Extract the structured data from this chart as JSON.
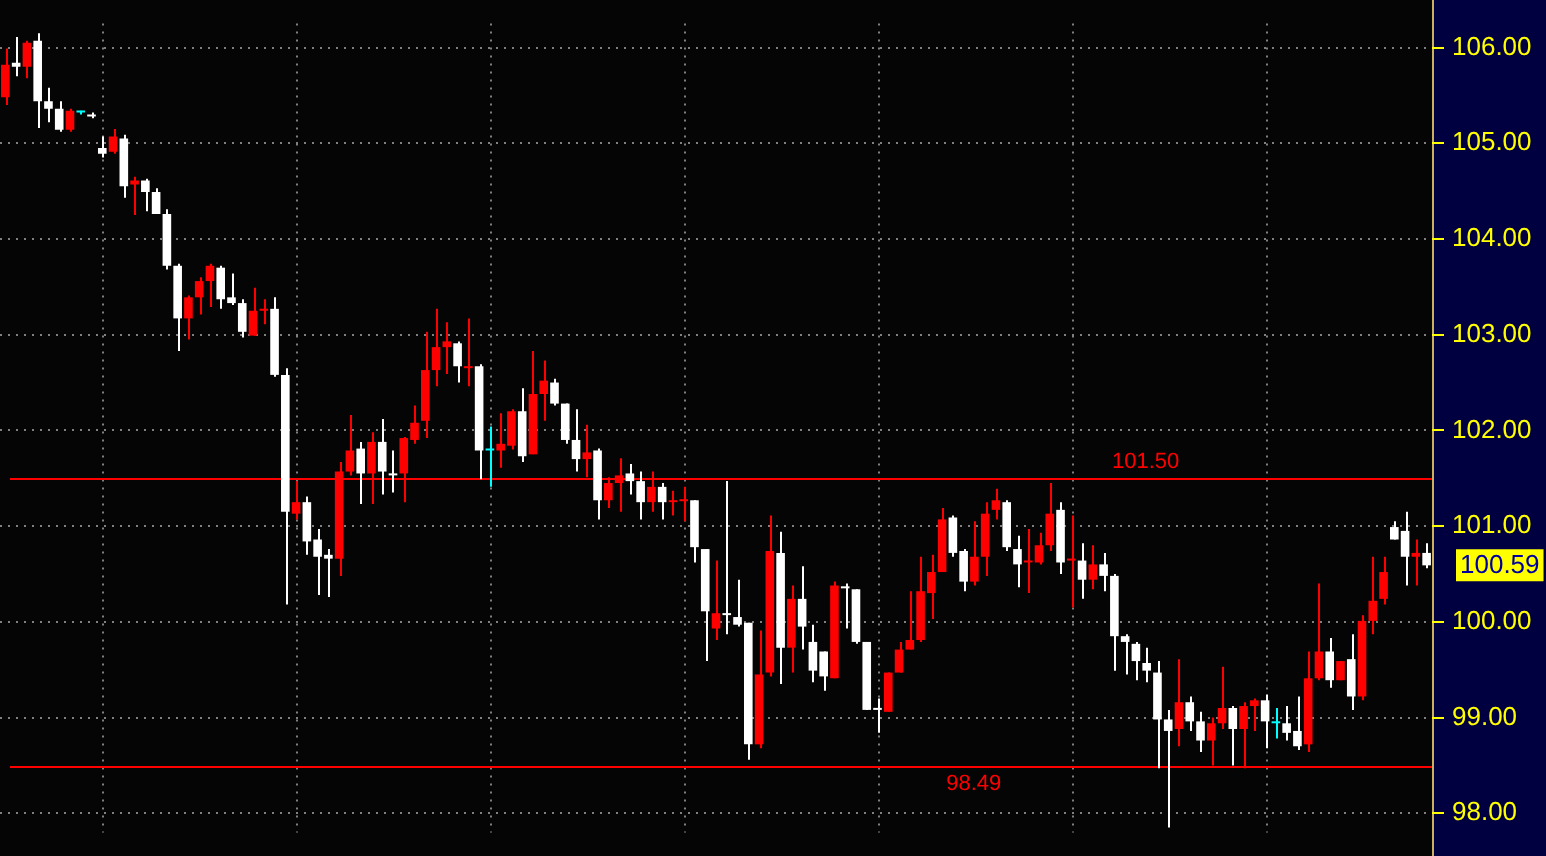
{
  "chart_data": {
    "type": "candlestick",
    "categories": [
      null,
      null,
      null,
      null,
      null,
      null,
      null,
      null,
      null,
      null,
      null,
      null,
      null,
      null,
      null,
      null,
      null,
      null,
      null,
      null,
      null,
      null,
      null,
      null,
      null,
      null,
      null,
      null,
      null,
      null,
      null,
      null,
      null,
      null,
      null,
      null,
      null,
      null,
      null,
      null,
      null,
      null,
      null,
      null,
      null,
      null,
      null,
      null,
      null,
      null,
      null,
      null,
      null,
      null,
      null,
      null,
      null,
      null,
      null,
      null,
      null,
      null,
      null,
      null,
      null,
      null,
      null,
      null,
      null,
      null,
      null,
      null,
      null,
      null,
      null,
      null,
      null,
      null,
      null,
      null,
      null,
      null,
      null,
      null,
      null,
      null,
      null,
      null,
      null,
      null,
      null,
      null,
      null,
      null,
      null,
      null,
      null,
      null,
      null,
      null,
      null,
      null,
      null,
      null,
      null,
      null,
      null,
      null,
      null,
      null,
      null,
      null,
      null,
      null,
      null,
      null,
      null,
      null,
      null,
      null,
      null,
      null,
      null,
      null,
      null,
      null,
      null,
      null,
      null,
      null,
      null,
      null,
      null
    ],
    "ohlc": [
      [
        105.48,
        105.99,
        105.4,
        105.82
      ],
      [
        105.84,
        106.11,
        105.7,
        105.8
      ],
      [
        105.8,
        106.07,
        105.68,
        106.05
      ],
      [
        106.07,
        106.15,
        105.16,
        105.44
      ],
      [
        105.44,
        105.58,
        105.22,
        105.36
      ],
      [
        105.36,
        105.44,
        105.12,
        105.14
      ],
      [
        105.14,
        105.36,
        105.12,
        105.34
      ],
      [
        105.32,
        105.34,
        105.3,
        105.32
      ],
      [
        105.3,
        105.32,
        105.26,
        105.28
      ],
      [
        104.95,
        105.07,
        104.85,
        104.89
      ],
      [
        104.91,
        105.15,
        104.89,
        105.07
      ],
      [
        105.05,
        105.09,
        104.43,
        104.55
      ],
      [
        104.57,
        104.65,
        104.25,
        104.61
      ],
      [
        104.61,
        104.63,
        104.29,
        104.49
      ],
      [
        104.49,
        104.53,
        104.26,
        104.26
      ],
      [
        104.26,
        104.31,
        103.68,
        103.72
      ],
      [
        103.72,
        103.74,
        102.83,
        103.17
      ],
      [
        103.17,
        103.41,
        102.95,
        103.39
      ],
      [
        103.39,
        103.6,
        103.21,
        103.56
      ],
      [
        103.56,
        103.74,
        103.29,
        103.72
      ],
      [
        103.7,
        103.72,
        103.27,
        103.37
      ],
      [
        103.39,
        103.64,
        103.31,
        103.33
      ],
      [
        103.33,
        103.37,
        102.97,
        103.03
      ],
      [
        102.99,
        103.49,
        102.99,
        103.25
      ],
      [
        103.25,
        103.37,
        103.11,
        103.27
      ],
      [
        103.27,
        103.39,
        102.56,
        102.58
      ],
      [
        102.58,
        102.65,
        100.18,
        101.15
      ],
      [
        101.13,
        101.47,
        101.07,
        101.25
      ],
      [
        101.25,
        101.31,
        100.7,
        100.84
      ],
      [
        100.86,
        100.97,
        100.28,
        100.68
      ],
      [
        100.7,
        100.76,
        100.26,
        100.66
      ],
      [
        100.66,
        101.67,
        100.48,
        101.57
      ],
      [
        101.57,
        102.16,
        101.53,
        101.79
      ],
      [
        101.81,
        101.88,
        101.23,
        101.55
      ],
      [
        101.55,
        101.98,
        101.23,
        101.88
      ],
      [
        101.88,
        102.12,
        101.33,
        101.57
      ],
      [
        101.55,
        101.79,
        101.35,
        101.53
      ],
      [
        101.55,
        101.93,
        101.25,
        101.92
      ],
      [
        101.9,
        102.26,
        101.86,
        102.08
      ],
      [
        102.1,
        103.03,
        101.92,
        102.63
      ],
      [
        102.63,
        103.27,
        102.46,
        102.87
      ],
      [
        102.87,
        103.13,
        102.59,
        102.93
      ],
      [
        102.91,
        102.93,
        102.5,
        102.67
      ],
      [
        102.65,
        103.17,
        102.46,
        102.67
      ],
      [
        102.67,
        102.69,
        101.49,
        101.79
      ],
      [
        101.79,
        102.04,
        101.41,
        101.79
      ],
      [
        101.79,
        102.18,
        101.61,
        101.86
      ],
      [
        101.84,
        102.22,
        101.8,
        102.2
      ],
      [
        102.2,
        102.44,
        101.67,
        101.73
      ],
      [
        101.75,
        102.83,
        101.75,
        102.38
      ],
      [
        102.38,
        102.73,
        102.1,
        102.52
      ],
      [
        102.5,
        102.54,
        102.26,
        102.28
      ],
      [
        102.28,
        102.28,
        101.86,
        101.9
      ],
      [
        101.9,
        102.22,
        101.57,
        101.7
      ],
      [
        101.7,
        102.06,
        101.51,
        101.77
      ],
      [
        101.79,
        101.81,
        101.07,
        101.27
      ],
      [
        101.27,
        101.51,
        101.19,
        101.45
      ],
      [
        101.45,
        101.71,
        101.15,
        101.53
      ],
      [
        101.55,
        101.65,
        101.33,
        101.47
      ],
      [
        101.47,
        101.57,
        101.07,
        101.25
      ],
      [
        101.25,
        101.57,
        101.15,
        101.41
      ],
      [
        101.41,
        101.45,
        101.07,
        101.25
      ],
      [
        101.25,
        101.37,
        101.11,
        101.27
      ],
      [
        101.26,
        101.41,
        101.05,
        101.27
      ],
      [
        101.27,
        101.27,
        100.62,
        100.78
      ],
      [
        100.76,
        100.76,
        99.59,
        100.11
      ],
      [
        99.93,
        100.64,
        99.81,
        100.09
      ],
      [
        100.09,
        101.47,
        99.87,
        100.07
      ],
      [
        100.05,
        100.44,
        99.95,
        99.97
      ],
      [
        99.99,
        99.99,
        98.56,
        98.72
      ],
      [
        98.72,
        99.91,
        98.68,
        99.45
      ],
      [
        99.47,
        101.11,
        99.43,
        100.74
      ],
      [
        100.72,
        100.94,
        99.35,
        99.73
      ],
      [
        99.73,
        100.38,
        99.47,
        100.24
      ],
      [
        100.24,
        100.58,
        99.71,
        99.95
      ],
      [
        99.79,
        99.97,
        99.37,
        99.49
      ],
      [
        99.69,
        99.69,
        99.28,
        99.43
      ],
      [
        99.41,
        100.42,
        99.41,
        100.38
      ],
      [
        100.37,
        100.4,
        99.93,
        100.35
      ],
      [
        100.34,
        100.34,
        99.77,
        99.79
      ],
      [
        99.79,
        99.79,
        99.08,
        99.08
      ],
      [
        99.1,
        99.2,
        98.84,
        99.08
      ],
      [
        99.06,
        99.47,
        99.06,
        99.47
      ],
      [
        99.47,
        99.79,
        99.47,
        99.71
      ],
      [
        99.71,
        100.32,
        99.71,
        99.81
      ],
      [
        99.81,
        100.68,
        99.79,
        100.32
      ],
      [
        100.3,
        100.7,
        100.03,
        100.52
      ],
      [
        100.52,
        101.19,
        100.52,
        101.07
      ],
      [
        101.09,
        101.11,
        100.68,
        100.72
      ],
      [
        100.74,
        100.76,
        100.32,
        100.42
      ],
      [
        100.42,
        101.05,
        100.38,
        100.68
      ],
      [
        100.68,
        101.25,
        100.48,
        101.13
      ],
      [
        101.17,
        101.39,
        101.07,
        101.27
      ],
      [
        101.25,
        101.27,
        100.74,
        100.78
      ],
      [
        100.76,
        100.9,
        100.36,
        100.6
      ],
      [
        100.62,
        100.97,
        100.3,
        100.62
      ],
      [
        100.62,
        100.93,
        100.6,
        100.8
      ],
      [
        100.8,
        101.45,
        100.74,
        101.13
      ],
      [
        101.17,
        101.25,
        100.5,
        100.62
      ],
      [
        100.64,
        101.11,
        100.15,
        100.66
      ],
      [
        100.64,
        100.82,
        100.24,
        100.44
      ],
      [
        100.44,
        100.8,
        100.34,
        100.6
      ],
      [
        100.6,
        100.72,
        100.32,
        100.48
      ],
      [
        100.48,
        100.5,
        99.49,
        99.85
      ],
      [
        99.85,
        99.87,
        99.45,
        99.79
      ],
      [
        99.77,
        99.79,
        99.39,
        99.59
      ],
      [
        99.57,
        99.73,
        99.37,
        99.49
      ],
      [
        99.47,
        99.59,
        98.47,
        98.98
      ],
      [
        98.98,
        99.08,
        97.85,
        98.86
      ],
      [
        98.88,
        99.61,
        98.7,
        99.16
      ],
      [
        99.16,
        99.22,
        98.86,
        98.96
      ],
      [
        98.96,
        99.06,
        98.64,
        98.76
      ],
      [
        98.76,
        99.0,
        98.5,
        98.94
      ],
      [
        98.94,
        99.53,
        98.88,
        99.1
      ],
      [
        99.1,
        99.12,
        98.5,
        98.88
      ],
      [
        98.88,
        99.16,
        98.47,
        99.12
      ],
      [
        99.12,
        99.2,
        98.86,
        99.18
      ],
      [
        99.18,
        99.24,
        98.68,
        98.96
      ],
      [
        98.94,
        99.1,
        98.78,
        98.94
      ],
      [
        98.94,
        99.12,
        98.76,
        98.84
      ],
      [
        98.86,
        99.22,
        98.66,
        98.7
      ],
      [
        98.72,
        99.69,
        98.64,
        99.41
      ],
      [
        99.41,
        100.4,
        99.39,
        99.69
      ],
      [
        99.69,
        99.83,
        99.31,
        99.39
      ],
      [
        99.39,
        99.59,
        99.39,
        99.59
      ],
      [
        99.61,
        99.87,
        99.08,
        99.22
      ],
      [
        99.22,
        100.07,
        99.18,
        100.01
      ],
      [
        100.01,
        100.68,
        99.87,
        100.22
      ],
      [
        100.24,
        100.68,
        100.18,
        100.52
      ],
      [
        100.99,
        101.05,
        100.86,
        100.86
      ],
      [
        100.95,
        101.15,
        100.38,
        100.68
      ],
      [
        100.68,
        100.86,
        100.38,
        100.72
      ],
      [
        100.72,
        100.82,
        100.56,
        100.59
      ]
    ],
    "colors": [
      "#ff0000",
      "#ffffff",
      "#ff0000",
      "#ffffff",
      "#ffffff",
      "#ffffff",
      "#ff0000",
      "#00ffff",
      "#ffffff",
      "#ffffff",
      "#ff0000",
      "#ffffff",
      "#ff0000",
      "#ffffff",
      "#ffffff",
      "#ffffff",
      "#ffffff",
      "#ff0000",
      "#ff0000",
      "#ff0000",
      "#ffffff",
      "#ffffff",
      "#ffffff",
      "#ff0000",
      "#ff0000",
      "#ffffff",
      "#ffffff",
      "#ff0000",
      "#ffffff",
      "#ffffff",
      "#ffffff",
      "#ff0000",
      "#ff0000",
      "#ffffff",
      "#ff0000",
      "#ffffff",
      "#ffffff",
      "#ff0000",
      "#ff0000",
      "#ff0000",
      "#ff0000",
      "#ff0000",
      "#ffffff",
      "#ff0000",
      "#ffffff",
      "#00ffff",
      "#ff0000",
      "#ff0000",
      "#ffffff",
      "#ff0000",
      "#ff0000",
      "#ffffff",
      "#ffffff",
      "#ffffff",
      "#ff0000",
      "#ffffff",
      "#ff0000",
      "#ff0000",
      "#ffffff",
      "#ffffff",
      "#ff0000",
      "#ffffff",
      "#ff0000",
      "#ff0000",
      "#ffffff",
      "#ffffff",
      "#ff0000",
      "#ffffff",
      "#ffffff",
      "#ffffff",
      "#ff0000",
      "#ff0000",
      "#ffffff",
      "#ff0000",
      "#ffffff",
      "#ffffff",
      "#ffffff",
      "#ff0000",
      "#ffffff",
      "#ffffff",
      "#ffffff",
      "#ffffff",
      "#ff0000",
      "#ff0000",
      "#ff0000",
      "#ff0000",
      "#ff0000",
      "#ff0000",
      "#ffffff",
      "#ffffff",
      "#ff0000",
      "#ff0000",
      "#ff0000",
      "#ffffff",
      "#ffffff",
      "#ff0000",
      "#ff0000",
      "#ff0000",
      "#ffffff",
      "#ff0000",
      "#ffffff",
      "#ff0000",
      "#ffffff",
      "#ffffff",
      "#ffffff",
      "#ffffff",
      "#ffffff",
      "#ffffff",
      "#ffffff",
      "#ff0000",
      "#ffffff",
      "#ffffff",
      "#ff0000",
      "#ff0000",
      "#ffffff",
      "#ff0000",
      "#ff0000",
      "#ffffff",
      "#00ffff",
      "#ffffff",
      "#ffffff",
      "#ff0000",
      "#ff0000",
      "#ffffff",
      "#ff0000",
      "#ffffff",
      "#ff0000",
      "#ff0000",
      "#ff0000",
      "#ffffff",
      "#ffffff",
      "#ff0000",
      "#ffffff"
    ],
    "ylim": [
      97.8,
      106.25
    ],
    "yticks": [
      {
        "value": 98,
        "label": "98.00"
      },
      {
        "value": 99,
        "label": "99.00"
      },
      {
        "value": 100,
        "label": "100.00"
      },
      {
        "value": 101,
        "label": "101.00"
      },
      {
        "value": 102,
        "label": "102.00"
      },
      {
        "value": 103,
        "label": "103.00"
      },
      {
        "value": 104,
        "label": "104.00"
      },
      {
        "value": 105,
        "label": "105.00"
      },
      {
        "value": 106,
        "label": "106.00"
      }
    ],
    "ref_lines": [
      {
        "axis": "y",
        "value": 101.5,
        "label": "101.50",
        "color": "#ff0000"
      },
      {
        "axis": "y",
        "value": 98.49,
        "label": "98.49",
        "color": "#ff0000"
      }
    ],
    "annotations": [
      "100.59"
    ],
    "grid": true
  }
}
